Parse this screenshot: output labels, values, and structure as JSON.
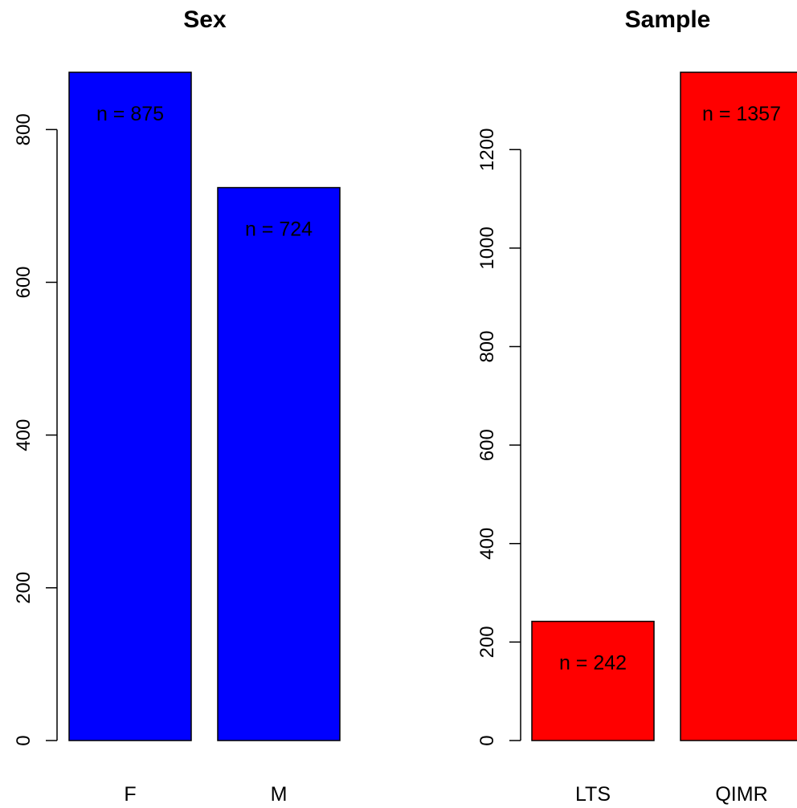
{
  "chart_data": [
    {
      "type": "bar",
      "title": "Sex",
      "categories": [
        "F",
        "M"
      ],
      "values": [
        875,
        724
      ],
      "data_labels": [
        "n = 875",
        "n = 724"
      ],
      "bar_color": "#0000ff",
      "yticks": [
        0,
        200,
        400,
        600,
        800
      ],
      "ylim": [
        0,
        875
      ],
      "xlabel": "",
      "ylabel": "",
      "grid": false,
      "legend": "none"
    },
    {
      "type": "bar",
      "title": "Sample",
      "categories": [
        "LTS",
        "QIMR"
      ],
      "values": [
        242,
        1357
      ],
      "data_labels": [
        "n = 242",
        "n = 1357"
      ],
      "bar_color": "#ff0000",
      "yticks": [
        0,
        200,
        400,
        600,
        800,
        1000,
        1200
      ],
      "ylim": [
        0,
        1357
      ],
      "xlabel": "",
      "ylabel": "",
      "grid": false,
      "legend": "none"
    }
  ]
}
